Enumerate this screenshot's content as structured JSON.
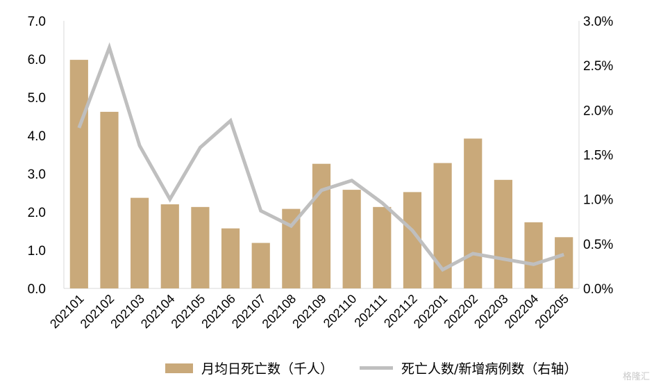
{
  "chart_data": {
    "type": "bar+line",
    "categories": [
      "202101",
      "202102",
      "202103",
      "202104",
      "202105",
      "202106",
      "202107",
      "202108",
      "202109",
      "202110",
      "202111",
      "202112",
      "202201",
      "202202",
      "202203",
      "202204",
      "202205"
    ],
    "series": [
      {
        "name": "月均日死亡数（千人）",
        "type": "bar",
        "axis": "left",
        "color": "#C9A97A",
        "values": [
          5.98,
          4.62,
          2.37,
          2.2,
          2.13,
          1.57,
          1.19,
          2.08,
          3.26,
          2.58,
          2.13,
          2.52,
          3.28,
          3.92,
          2.84,
          1.73,
          1.34
        ]
      },
      {
        "name": "死亡人数/新增病例数（右轴）",
        "type": "line",
        "axis": "right",
        "color": "#BFBFBF",
        "values": [
          1.8,
          2.7,
          1.6,
          1.0,
          1.58,
          1.88,
          0.87,
          0.7,
          1.1,
          1.21,
          0.96,
          0.65,
          0.21,
          0.39,
          0.33,
          0.27,
          0.38
        ]
      }
    ],
    "y_left": {
      "min": 0,
      "max": 7,
      "step": 1,
      "tick_labels": [
        "0.0",
        "1.0",
        "2.0",
        "3.0",
        "4.0",
        "5.0",
        "6.0",
        "7.0"
      ]
    },
    "y_right": {
      "min": 0,
      "max": 3,
      "step": 0.5,
      "tick_labels": [
        "0.0%",
        "0.5%",
        "1.0%",
        "1.5%",
        "2.0%",
        "2.5%",
        "3.0%"
      ]
    },
    "legend_position": "bottom",
    "grid": false
  },
  "legend": {
    "bar_label": "月均日死亡数（千人）",
    "line_label": "死亡人数/新增病例数（右轴）"
  },
  "watermark": "格隆汇"
}
